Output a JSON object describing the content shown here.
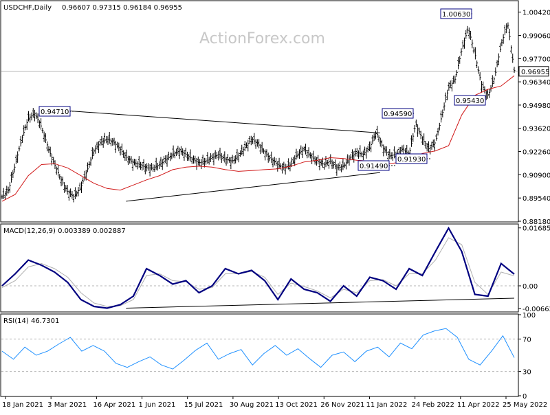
{
  "chart_data": {
    "type": "line",
    "symbol": "USDCHF,Daily",
    "ohlc_header": "0.96607 0.97315 0.96184 0.96955",
    "last_price": 0.96955,
    "last_price_label": "0.96955",
    "watermark": "ActionForex.com",
    "price_panel": {
      "ylim": [
        0.8818,
        1.0105
      ],
      "ticks": [
        "1.00420",
        "0.99060",
        "0.97700",
        "0.96340",
        "0.94980",
        "0.93620",
        "0.92260",
        "0.90900",
        "0.89540",
        "0.88180"
      ],
      "annotations": [
        "0.94710",
        "0.94590",
        "1.00630",
        "0.95430",
        "0.91490",
        "0.91930"
      ],
      "trendlines": [
        {
          "from": [
            "2021-03-08",
            0.9471
          ],
          "to": [
            "2022-01-25",
            0.9335
          ]
        },
        {
          "from": [
            "2021-05-20",
            0.8935
          ],
          "to": [
            "2022-01-25",
            0.9103
          ]
        }
      ],
      "close": [
        0.896,
        0.9,
        0.915,
        0.93,
        0.942,
        0.945,
        0.937,
        0.925,
        0.915,
        0.906,
        0.899,
        0.896,
        0.902,
        0.912,
        0.923,
        0.928,
        0.93,
        0.928,
        0.924,
        0.919,
        0.916,
        0.915,
        0.913,
        0.913,
        0.915,
        0.918,
        0.921,
        0.923,
        0.921,
        0.918,
        0.916,
        0.917,
        0.919,
        0.921,
        0.918,
        0.917,
        0.92,
        0.925,
        0.93,
        0.927,
        0.922,
        0.918,
        0.915,
        0.913,
        0.915,
        0.921,
        0.924,
        0.92,
        0.917,
        0.915,
        0.917,
        0.913,
        0.914,
        0.919,
        0.922,
        0.921,
        0.925,
        0.934,
        0.925,
        0.92,
        0.921,
        0.924,
        0.921,
        0.939,
        0.93,
        0.924,
        0.928,
        0.944,
        0.96,
        0.965,
        0.982,
        0.995,
        0.98,
        0.962,
        0.955,
        0.966,
        0.985,
        0.998,
        0.97
      ]
    },
    "ma_panel": {
      "ma": [
        0.8935,
        0.8975,
        0.9085,
        0.915,
        0.9155,
        0.913,
        0.9085,
        0.904,
        0.901,
        0.9,
        0.903,
        0.906,
        0.9085,
        0.912,
        0.9135,
        0.914,
        0.9135,
        0.912,
        0.911,
        0.9115,
        0.912,
        0.9125,
        0.914,
        0.9165,
        0.9175,
        0.919,
        0.9185,
        0.9175,
        0.917,
        0.915,
        0.916,
        0.918,
        0.9215,
        0.923,
        0.926,
        0.944,
        0.9555,
        0.959,
        0.961,
        0.967
      ]
    },
    "macd_panel": {
      "label": "MACD(12,26,9) 0.003389 0.002887",
      "ylim": [
        -0.0074,
        0.0178
      ],
      "ticks": [
        "0.016856",
        "0.00",
        "-0.006629"
      ],
      "trendline": {
        "from": [
          "2021-05-20",
          -0.0065
        ],
        "to": [
          "2022-06-06",
          -0.0036
        ]
      },
      "macd": [
        0.0,
        0.0035,
        0.0075,
        0.006,
        0.004,
        0.001,
        -0.004,
        -0.006,
        -0.0065,
        -0.0055,
        -0.003,
        0.005,
        0.003,
        0.0005,
        0.0015,
        -0.002,
        0.0,
        0.005,
        0.0035,
        0.0045,
        0.0015,
        -0.004,
        0.002,
        -0.001,
        -0.002,
        -0.0045,
        0.0,
        -0.003,
        0.0025,
        0.0015,
        -0.001,
        0.005,
        0.003,
        0.01,
        0.0168,
        0.01,
        -0.0025,
        -0.003,
        0.0065,
        0.0034
      ],
      "signal": [
        -0.0005,
        0.0015,
        0.0055,
        0.0065,
        0.005,
        0.0025,
        -0.002,
        -0.005,
        -0.006,
        -0.0058,
        -0.004,
        0.003,
        0.0035,
        0.0015,
        0.0012,
        -0.001,
        -0.0005,
        0.0035,
        0.0035,
        0.0042,
        0.0025,
        -0.0025,
        0.0008,
        -0.0002,
        -0.0015,
        -0.0035,
        -0.001,
        -0.002,
        0.0015,
        0.0018,
        0.0,
        0.0035,
        0.0035,
        0.0075,
        0.014,
        0.012,
        0.001,
        -0.0025,
        0.004,
        0.0029
      ]
    },
    "rsi_panel": {
      "label": "RSI(14) 46.7301",
      "ylim": [
        0,
        100
      ],
      "ticks": [
        "100",
        "70",
        "30",
        "0"
      ],
      "levels": [
        70,
        30
      ],
      "rsi": [
        55,
        45,
        60,
        50,
        55,
        64,
        72,
        55,
        62,
        55,
        40,
        35,
        42,
        48,
        38,
        33,
        44,
        56,
        65,
        45,
        52,
        57,
        38,
        52,
        62,
        50,
        58,
        46,
        35,
        50,
        54,
        42,
        55,
        60,
        48,
        65,
        58,
        75,
        80,
        83,
        72,
        45,
        38,
        55,
        74,
        47
      ]
    },
    "x_ticks": [
      "18 Jan 2021",
      "3 Mar 2021",
      "16 Apr 2021",
      "1 Jun 2021",
      "15 Jul 2021",
      "30 Aug 2021",
      "13 Oct 2021",
      "26 Nov 2021",
      "11 Jan 2022",
      "24 Feb 2022",
      "11 Apr 2022",
      "25 May 2022"
    ],
    "x_range": [
      "2021-01-18",
      "2022-06-06"
    ]
  },
  "colors": {
    "price": "#000000",
    "ma": "#d01818",
    "macd": "#000080",
    "signal": "#b0b0b0",
    "rsi": "#1e90ff",
    "grid": "#b4b4b4",
    "annotation_border": "#000080"
  }
}
